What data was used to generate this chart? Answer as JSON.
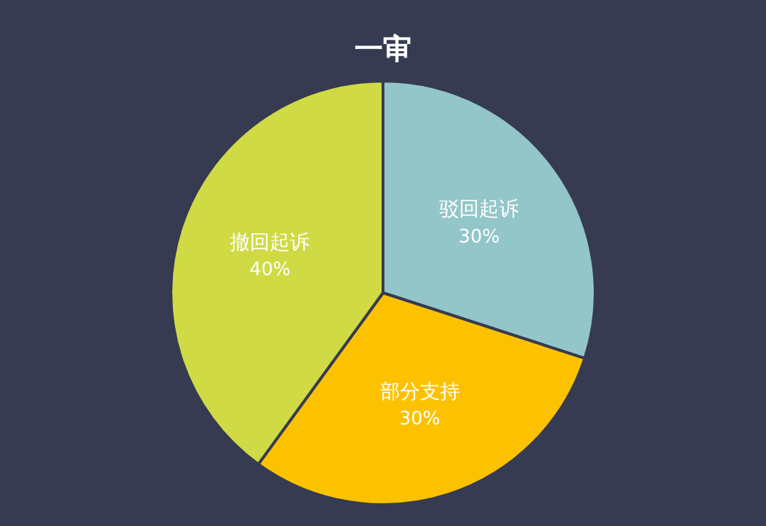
{
  "chart_data": {
    "type": "pie",
    "title": "一审",
    "categories": [
      "驳回起诉",
      "部分支持",
      "撤回起诉"
    ],
    "values": [
      30,
      30,
      40
    ],
    "value_labels": [
      "30%",
      "30%",
      "40%"
    ],
    "colors": [
      "#93c6c9",
      "#fcc200",
      "#cfda45"
    ],
    "legend": false
  }
}
